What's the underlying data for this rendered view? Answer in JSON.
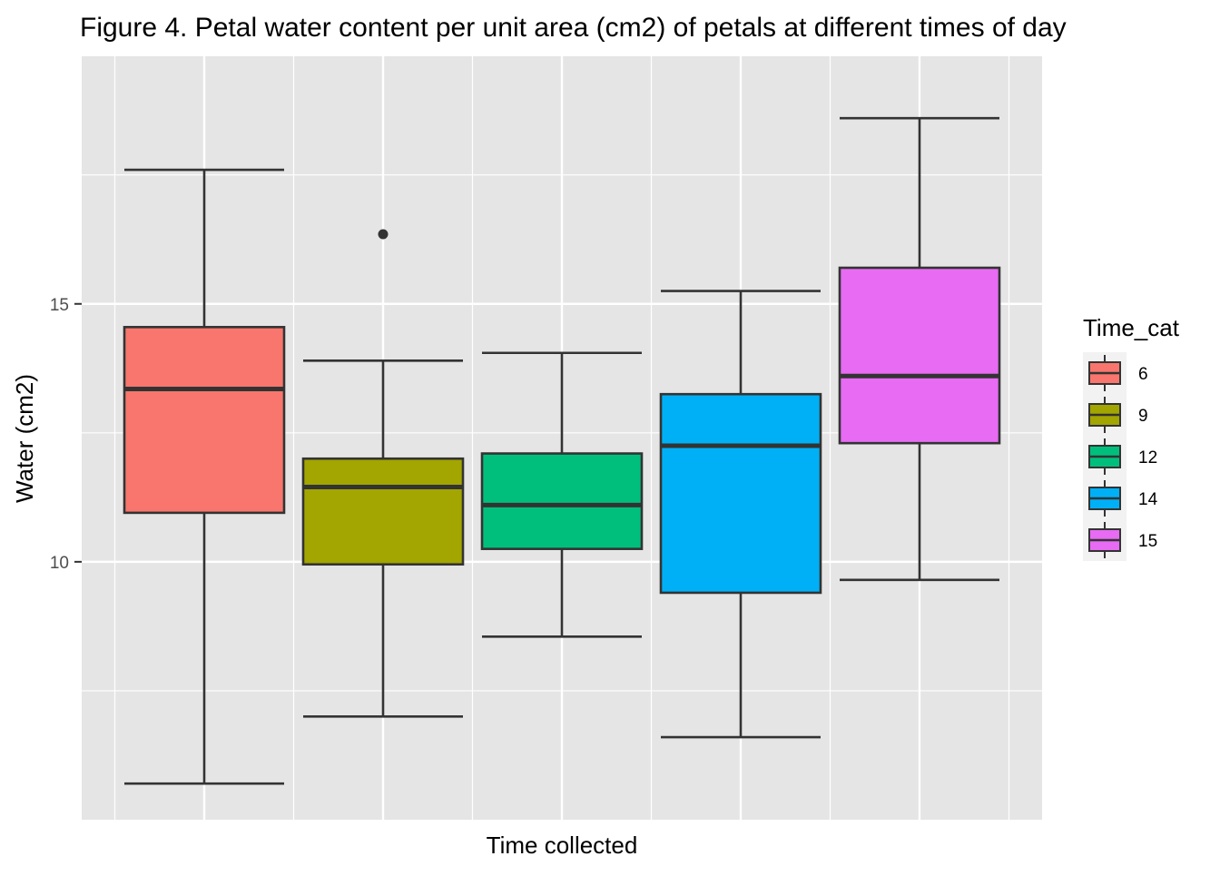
{
  "chart_data": {
    "type": "box",
    "title": "Figure 4. Petal water content per unit area (cm2) of petals at different times of day",
    "xlabel": "Time collected",
    "ylabel": "Water (cm2)",
    "ylim": [
      5.0,
      19.8
    ],
    "y_ticks": [
      10,
      15
    ],
    "y_tick_labels": [
      "10",
      "15"
    ],
    "x_tick_labels_shown": false,
    "grid": true,
    "panel_background": "#E5E5E5",
    "grid_color": "#FFFFFF",
    "legend": {
      "title": "Time_cat",
      "position": "right",
      "entries": [
        "6",
        "9",
        "12",
        "14",
        "15"
      ]
    },
    "series": [
      {
        "name": "6",
        "color": "#F8766D",
        "whisker_low": 5.7,
        "q1": 10.95,
        "median": 13.35,
        "q3": 14.55,
        "whisker_high": 17.6,
        "outliers": []
      },
      {
        "name": "9",
        "color": "#A3A500",
        "whisker_low": 7.0,
        "q1": 9.95,
        "median": 11.45,
        "q3": 12.0,
        "whisker_high": 13.9,
        "outliers": [
          16.35
        ]
      },
      {
        "name": "12",
        "color": "#00BF7D",
        "whisker_low": 8.55,
        "q1": 10.25,
        "median": 11.1,
        "q3": 12.1,
        "whisker_high": 14.05,
        "outliers": []
      },
      {
        "name": "14",
        "color": "#00B0F6",
        "whisker_low": 6.6,
        "q1": 9.4,
        "median": 12.25,
        "q3": 13.25,
        "whisker_high": 15.25,
        "outliers": []
      },
      {
        "name": "15",
        "color": "#E76BF3",
        "whisker_low": 9.65,
        "q1": 12.3,
        "median": 13.6,
        "q3": 15.7,
        "whisker_high": 18.6,
        "outliers": []
      }
    ]
  }
}
